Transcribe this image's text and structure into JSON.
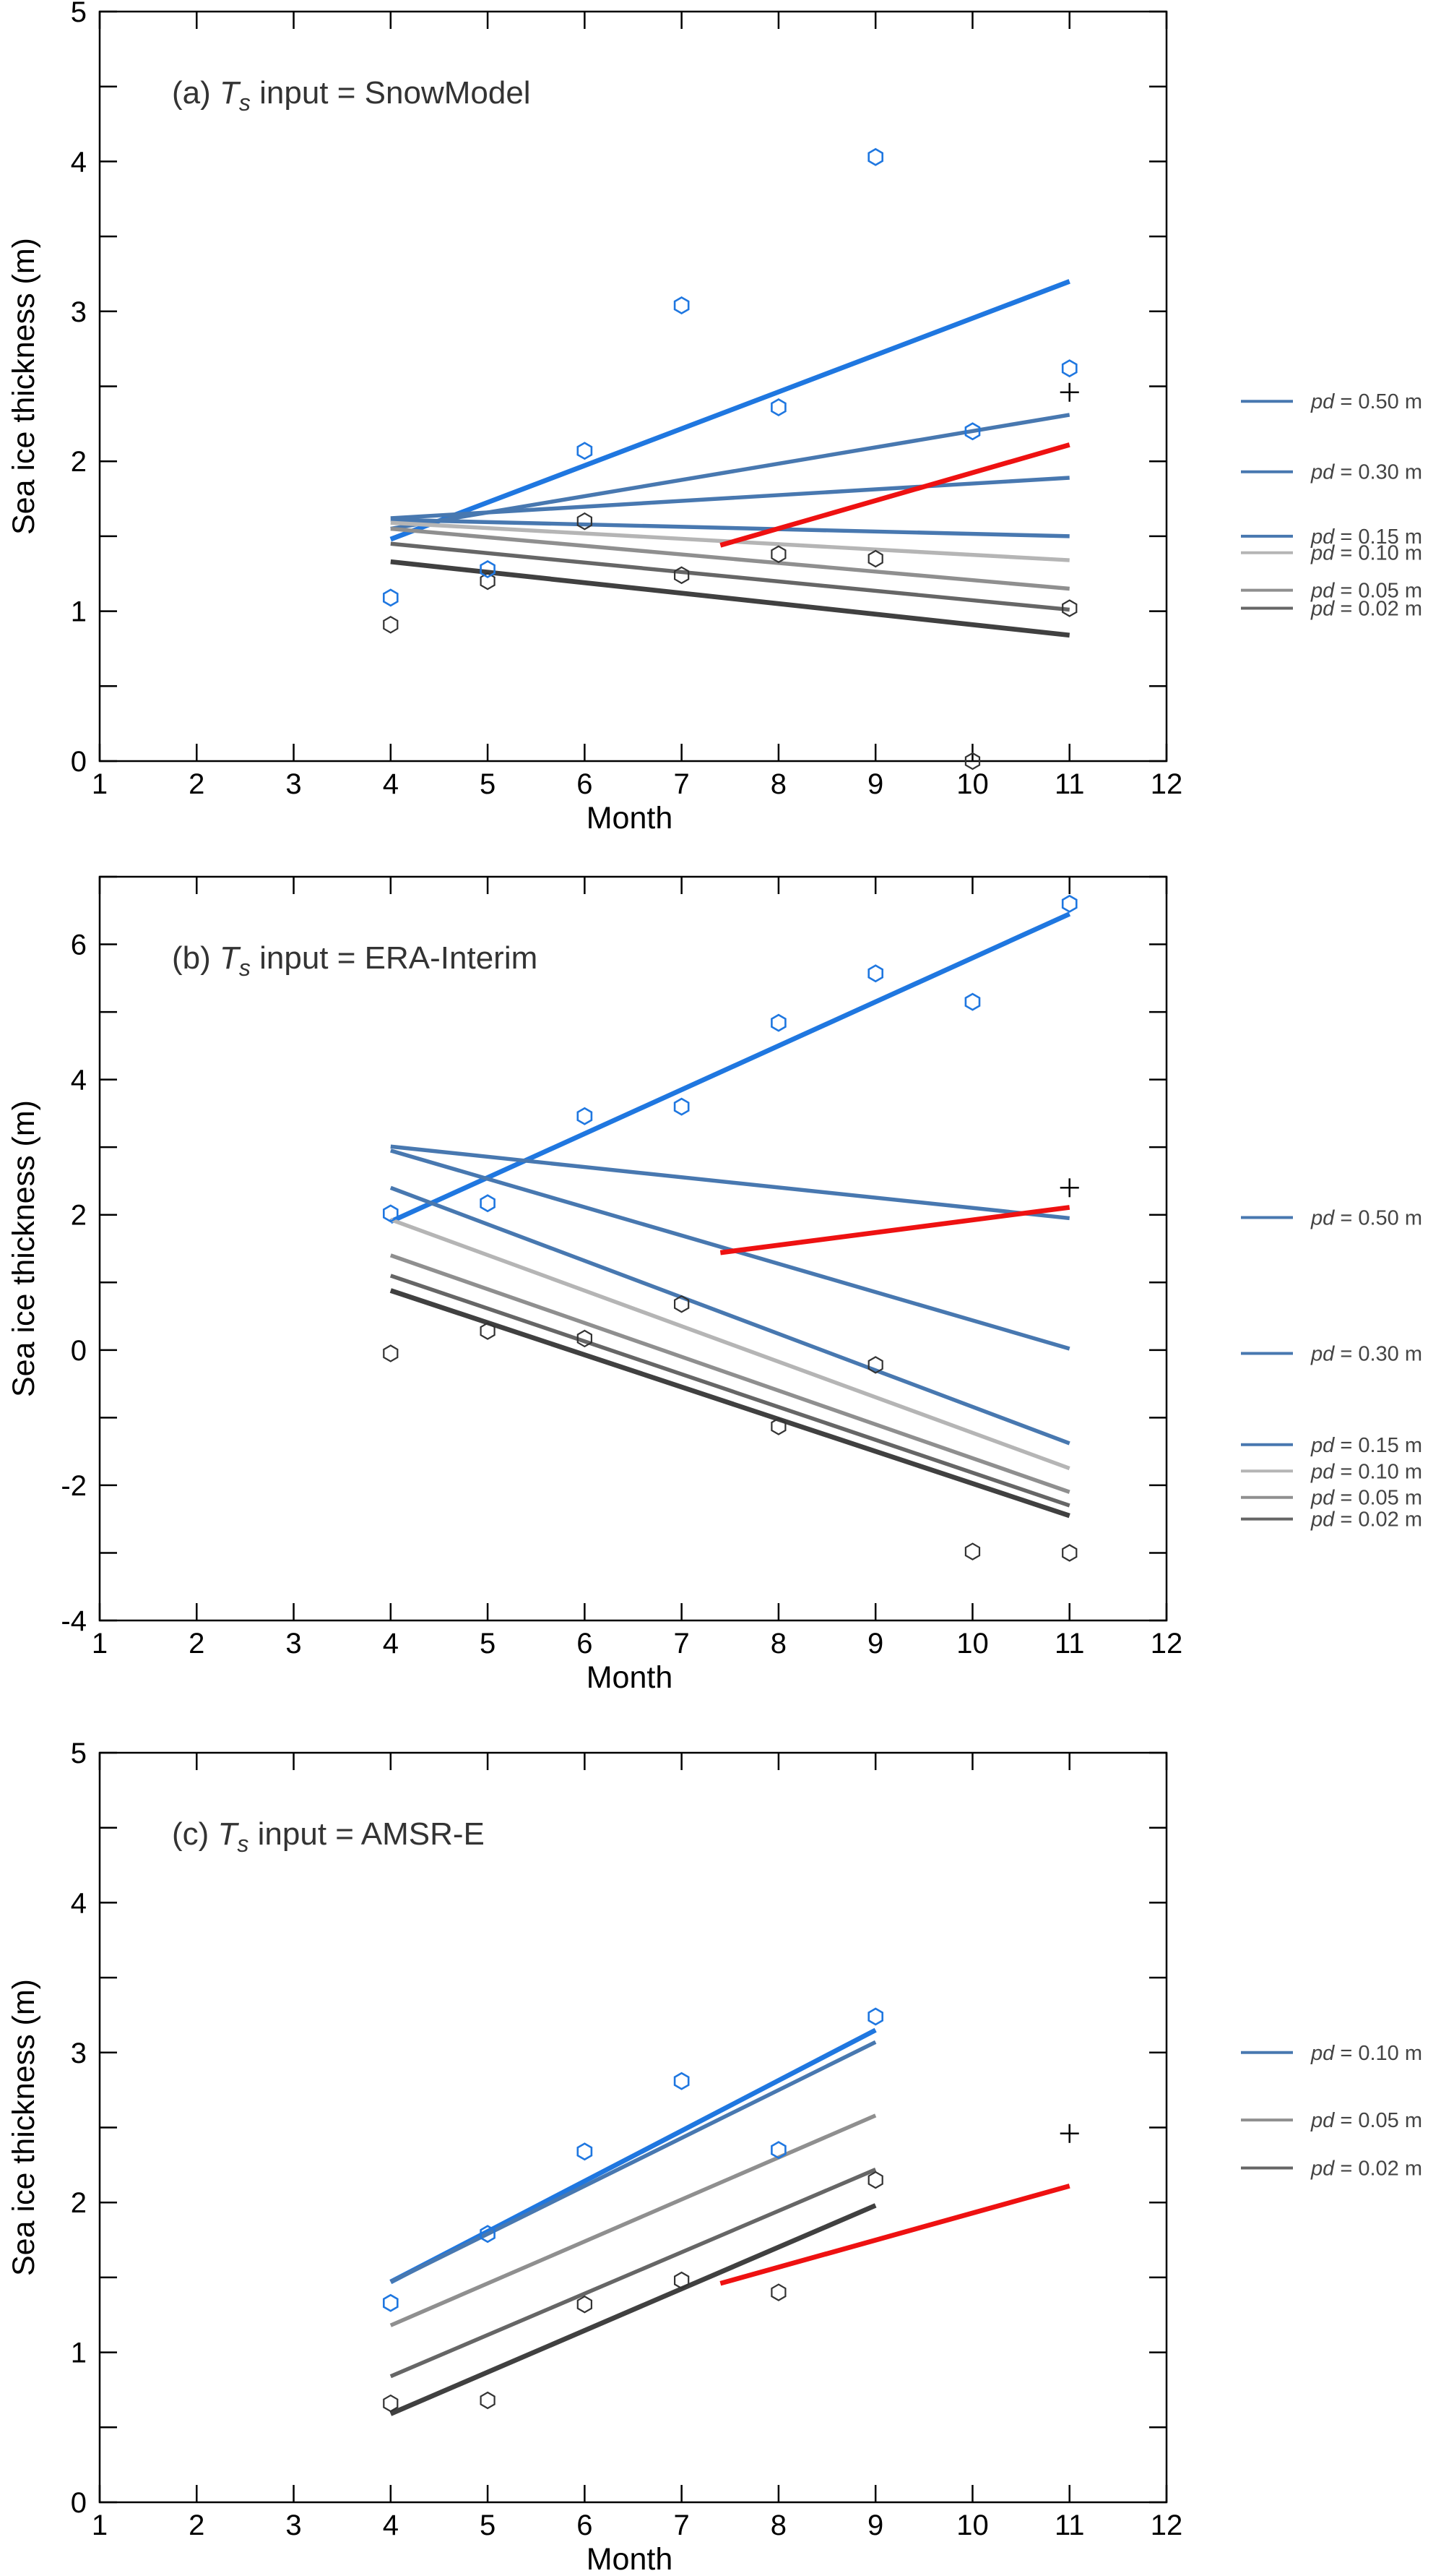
{
  "chart_data": [
    {
      "type": "scatter",
      "panel_label": "(a)",
      "title_main": "T",
      "title_sub": "s",
      "title_rest": " input = SnowModel",
      "xlabel": "Month",
      "ylabel": "Sea ice thickness (m)",
      "xlim": [
        1,
        12
      ],
      "ylim": [
        0,
        5
      ],
      "xticks": [
        "1",
        "2",
        "3",
        "4",
        "5",
        "6",
        "7",
        "8",
        "9",
        "10",
        "11",
        "12"
      ],
      "yticks": [
        "0",
        "1",
        "2",
        "3",
        "4",
        "5"
      ],
      "grid": false,
      "legend_position": "right",
      "colors": {
        "blue": "#1f77e0",
        "steel": "#4878b0",
        "red": "#ee1111",
        "black": "#333333"
      },
      "points_blue": {
        "x": [
          4,
          5,
          6,
          7,
          8,
          9,
          10,
          11
        ],
        "y": [
          1.09,
          1.28,
          2.07,
          3.04,
          2.36,
          4.03,
          2.2,
          2.62
        ]
      },
      "points_black": {
        "x": [
          4,
          5,
          6,
          7,
          8,
          9,
          10,
          11
        ],
        "y": [
          0.91,
          1.2,
          1.6,
          1.24,
          1.38,
          1.35,
          0.0,
          1.02
        ]
      },
      "cross": {
        "x": 11,
        "y": 2.46
      },
      "lines": [
        {
          "x": [
            4,
            11
          ],
          "y": [
            1.48,
            3.2
          ],
          "color": "#1f77e0",
          "width": 3.2
        },
        {
          "x": [
            4,
            11
          ],
          "y": [
            1.55,
            2.31
          ],
          "color": "#4878b0",
          "width": 2.6
        },
        {
          "x": [
            4,
            11
          ],
          "y": [
            1.62,
            1.89
          ],
          "color": "#4878b0",
          "width": 2.6
        },
        {
          "x": [
            4,
            11
          ],
          "y": [
            1.61,
            1.5
          ],
          "color": "#4878b0",
          "width": 2.6
        },
        {
          "x": [
            4,
            11
          ],
          "y": [
            1.59,
            1.34
          ],
          "color": "#b5b5b5",
          "width": 2.6
        },
        {
          "x": [
            4,
            11
          ],
          "y": [
            1.55,
            1.15
          ],
          "color": "#8f8f8f",
          "width": 2.6
        },
        {
          "x": [
            4,
            11
          ],
          "y": [
            1.45,
            1.01
          ],
          "color": "#666666",
          "width": 2.6
        },
        {
          "x": [
            4,
            11
          ],
          "y": [
            1.33,
            0.84
          ],
          "color": "#404040",
          "width": 3.2
        },
        {
          "x": [
            7.4,
            11
          ],
          "y": [
            1.44,
            2.11
          ],
          "color": "#ee1111",
          "width": 3.2
        }
      ],
      "legend": [
        {
          "label": "pd",
          "rest": " = 0.50 m",
          "color": "#4878b0",
          "y": 2.4
        },
        {
          "label": "pd",
          "rest": " = 0.30 m",
          "color": "#4878b0",
          "y": 1.93
        },
        {
          "label": "pd",
          "rest": " = 0.15 m",
          "color": "#4878b0",
          "y": 1.5
        },
        {
          "label": "pd",
          "rest": " = 0.10 m",
          "color": "#b5b5b5",
          "y": 1.39
        },
        {
          "label": "pd",
          "rest": " = 0.05 m",
          "color": "#8f8f8f",
          "y": 1.14
        },
        {
          "label": "pd",
          "rest": " = 0.02 m",
          "color": "#666666",
          "y": 1.02
        }
      ]
    },
    {
      "type": "scatter",
      "panel_label": "(b)",
      "title_main": "T",
      "title_sub": "s",
      "title_rest": " input = ERA-Interim",
      "xlabel": "Month",
      "ylabel": "Sea ice thickness (m)",
      "xlim": [
        1,
        12
      ],
      "ylim": [
        -4,
        7
      ],
      "xticks": [
        "1",
        "2",
        "3",
        "4",
        "5",
        "6",
        "7",
        "8",
        "9",
        "10",
        "11",
        "12"
      ],
      "yticks": [
        "-4",
        "-2",
        "0",
        "2",
        "4",
        "6"
      ],
      "yticks_values": [
        -4,
        -2,
        0,
        2,
        4,
        6
      ],
      "grid": false,
      "legend_position": "right",
      "points_blue": {
        "x": [
          4,
          5,
          6,
          7,
          8,
          9,
          10,
          11
        ],
        "y": [
          2.02,
          2.17,
          3.46,
          3.6,
          4.84,
          5.57,
          5.15,
          6.6
        ]
      },
      "points_black": {
        "x": [
          4,
          5,
          6,
          7,
          8,
          9,
          10,
          11
        ],
        "y": [
          -0.05,
          0.28,
          0.17,
          0.68,
          -1.13,
          -0.22,
          -2.98,
          -3.0
        ]
      },
      "cross": {
        "x": 11,
        "y": 2.4
      },
      "lines": [
        {
          "x": [
            4,
            11
          ],
          "y": [
            1.9,
            6.45
          ],
          "color": "#1f77e0",
          "width": 3.2
        },
        {
          "x": [
            4,
            11
          ],
          "y": [
            3.01,
            1.95
          ],
          "color": "#4878b0",
          "width": 2.6
        },
        {
          "x": [
            4,
            11
          ],
          "y": [
            2.95,
            0.02
          ],
          "color": "#4878b0",
          "width": 2.6
        },
        {
          "x": [
            4,
            11
          ],
          "y": [
            2.4,
            -1.38
          ],
          "color": "#4878b0",
          "width": 2.6
        },
        {
          "x": [
            4,
            11
          ],
          "y": [
            1.93,
            -1.75
          ],
          "color": "#b5b5b5",
          "width": 2.6
        },
        {
          "x": [
            4,
            11
          ],
          "y": [
            1.4,
            -2.1
          ],
          "color": "#8f8f8f",
          "width": 2.6
        },
        {
          "x": [
            4,
            11
          ],
          "y": [
            1.1,
            -2.3
          ],
          "color": "#666666",
          "width": 2.6
        },
        {
          "x": [
            4,
            11
          ],
          "y": [
            0.88,
            -2.45
          ],
          "color": "#404040",
          "width": 3.2
        },
        {
          "x": [
            7.4,
            11
          ],
          "y": [
            1.44,
            2.11
          ],
          "color": "#ee1111",
          "width": 3.2
        }
      ],
      "legend": [
        {
          "label": "pd",
          "rest": " = 0.50 m",
          "color": "#4878b0",
          "y": 1.96
        },
        {
          "label": "pd",
          "rest": " = 0.30 m",
          "color": "#4878b0",
          "y": -0.05
        },
        {
          "label": "pd",
          "rest": " = 0.15 m",
          "color": "#4878b0",
          "y": -1.4
        },
        {
          "label": "pd",
          "rest": " = 0.10 m",
          "color": "#b5b5b5",
          "y": -1.79
        },
        {
          "label": "pd",
          "rest": " = 0.05 m",
          "color": "#8f8f8f",
          "y": -2.18
        },
        {
          "label": "pd",
          "rest": " = 0.02 m",
          "color": "#666666",
          "y": -2.5
        }
      ]
    },
    {
      "type": "scatter",
      "panel_label": "(c)",
      "title_main": "T",
      "title_sub": "s",
      "title_rest": " input = AMSR-E",
      "xlabel": "Month",
      "ylabel": "Sea ice thickness (m)",
      "xlim": [
        1,
        12
      ],
      "ylim": [
        0,
        5
      ],
      "xticks": [
        "1",
        "2",
        "3",
        "4",
        "5",
        "6",
        "7",
        "8",
        "9",
        "10",
        "11",
        "12"
      ],
      "yticks": [
        "0",
        "1",
        "2",
        "3",
        "4",
        "5"
      ],
      "grid": false,
      "legend_position": "right",
      "points_blue": {
        "x": [
          4,
          5,
          6,
          7,
          8,
          9
        ],
        "y": [
          1.33,
          1.79,
          2.34,
          2.81,
          2.35,
          3.24
        ]
      },
      "points_black": {
        "x": [
          4,
          5,
          6,
          7,
          8,
          9
        ],
        "y": [
          0.66,
          0.68,
          1.32,
          1.48,
          1.4,
          2.15
        ]
      },
      "cross": {
        "x": 11,
        "y": 2.46
      },
      "lines": [
        {
          "x": [
            4,
            9
          ],
          "y": [
            1.47,
            3.15
          ],
          "color": "#1f77e0",
          "width": 3.2
        },
        {
          "x": [
            4,
            9
          ],
          "y": [
            1.47,
            3.07
          ],
          "color": "#4878b0",
          "width": 2.6
        },
        {
          "x": [
            4,
            9
          ],
          "y": [
            1.18,
            2.58
          ],
          "color": "#8f8f8f",
          "width": 2.6
        },
        {
          "x": [
            4,
            9
          ],
          "y": [
            0.84,
            2.22
          ],
          "color": "#666666",
          "width": 2.6
        },
        {
          "x": [
            4,
            9
          ],
          "y": [
            0.59,
            1.98
          ],
          "color": "#404040",
          "width": 3.2
        },
        {
          "x": [
            7.4,
            11
          ],
          "y": [
            1.46,
            2.11
          ],
          "color": "#ee1111",
          "width": 3.2
        }
      ],
      "legend": [
        {
          "label": "pd",
          "rest": " = 0.10 m",
          "color": "#4878b0",
          "y": 3.0
        },
        {
          "label": "pd",
          "rest": " = 0.05 m",
          "color": "#8f8f8f",
          "y": 2.55
        },
        {
          "label": "pd",
          "rest": " = 0.02 m",
          "color": "#666666",
          "y": 2.23
        }
      ]
    }
  ]
}
